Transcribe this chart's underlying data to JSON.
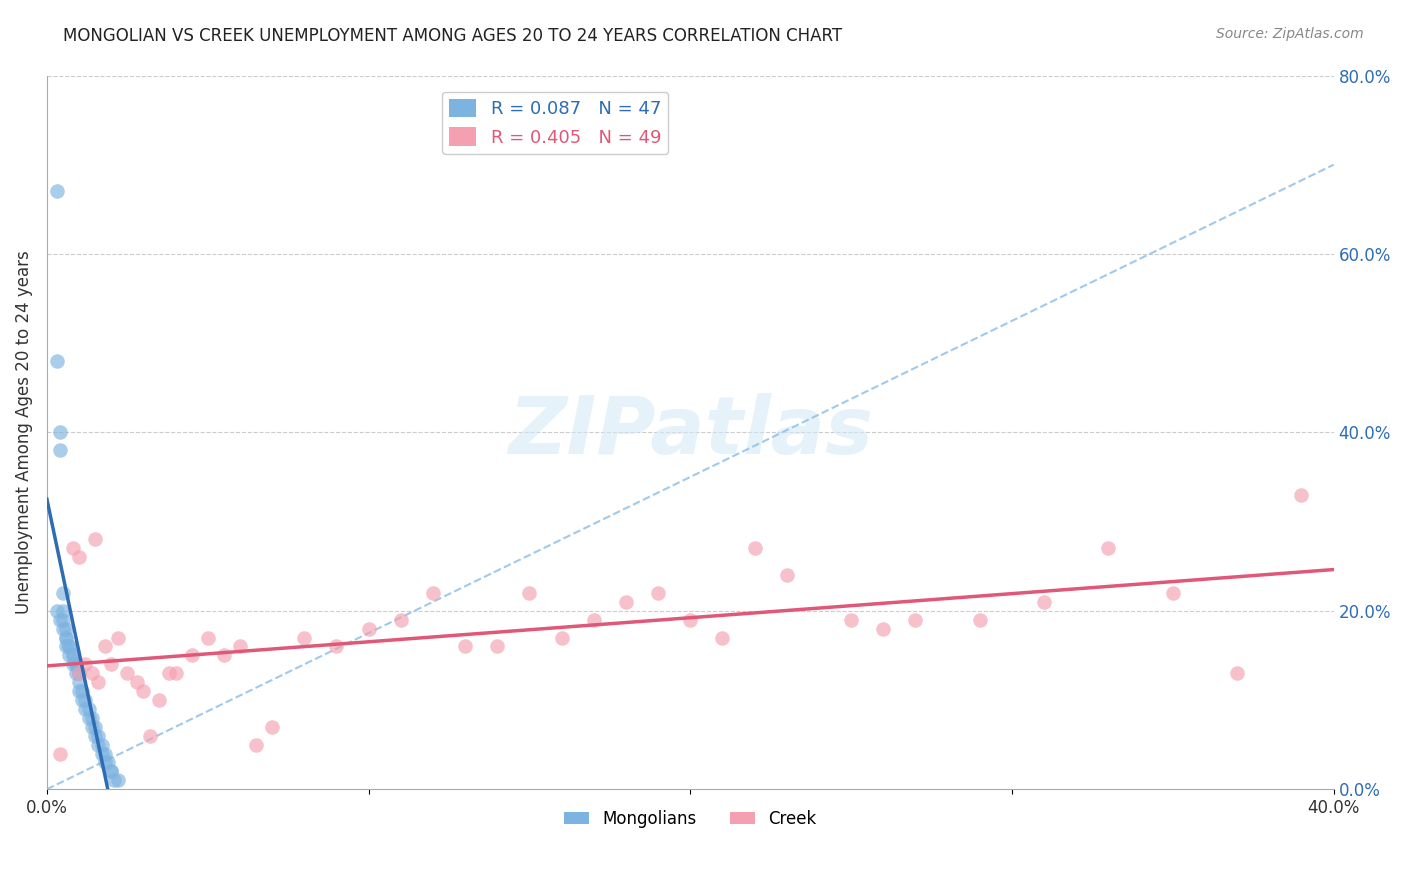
{
  "title": "MONGOLIAN VS CREEK UNEMPLOYMENT AMONG AGES 20 TO 24 YEARS CORRELATION CHART",
  "source": "Source: ZipAtlas.com",
  "ylabel": "Unemployment Among Ages 20 to 24 years",
  "watermark": "ZIPatlas",
  "mongolian_R": 0.087,
  "mongolian_N": 47,
  "creek_R": 0.405,
  "creek_N": 49,
  "xlim": [
    0.0,
    0.4
  ],
  "ylim": [
    0.0,
    0.8
  ],
  "yticks": [
    0.0,
    0.2,
    0.4,
    0.6,
    0.8
  ],
  "ytick_labels": [
    "0.0%",
    "20.0%",
    "40.0%",
    "60.0%",
    "80.0%"
  ],
  "mongolian_color": "#7db3e0",
  "creek_color": "#f4a0b0",
  "mongolian_line_color": "#2e6db4",
  "creek_line_color": "#e05878",
  "dashed_line_color": "#90c0e8",
  "background_color": "#ffffff",
  "dashed_slope": 1.75,
  "mongolian_x": [
    0.003,
    0.003,
    0.004,
    0.004,
    0.005,
    0.005,
    0.005,
    0.006,
    0.006,
    0.006,
    0.007,
    0.007,
    0.008,
    0.008,
    0.009,
    0.009,
    0.01,
    0.01,
    0.01,
    0.011,
    0.011,
    0.012,
    0.012,
    0.013,
    0.013,
    0.014,
    0.014,
    0.015,
    0.015,
    0.016,
    0.016,
    0.017,
    0.017,
    0.018,
    0.018,
    0.019,
    0.02,
    0.02,
    0.021,
    0.022,
    0.003,
    0.004,
    0.005,
    0.006,
    0.007,
    0.008,
    0.009
  ],
  "mongolian_y": [
    0.67,
    0.48,
    0.4,
    0.38,
    0.22,
    0.2,
    0.19,
    0.18,
    0.17,
    0.16,
    0.16,
    0.15,
    0.15,
    0.14,
    0.14,
    0.13,
    0.13,
    0.12,
    0.11,
    0.11,
    0.1,
    0.1,
    0.09,
    0.09,
    0.08,
    0.08,
    0.07,
    0.07,
    0.06,
    0.06,
    0.05,
    0.05,
    0.04,
    0.04,
    0.03,
    0.03,
    0.02,
    0.02,
    0.01,
    0.01,
    0.2,
    0.19,
    0.18,
    0.17,
    0.16,
    0.15,
    0.14
  ],
  "creek_x": [
    0.008,
    0.01,
    0.015,
    0.018,
    0.02,
    0.022,
    0.025,
    0.028,
    0.03,
    0.032,
    0.035,
    0.038,
    0.04,
    0.045,
    0.05,
    0.055,
    0.06,
    0.065,
    0.07,
    0.08,
    0.09,
    0.1,
    0.11,
    0.12,
    0.13,
    0.14,
    0.15,
    0.16,
    0.17,
    0.18,
    0.19,
    0.2,
    0.21,
    0.22,
    0.23,
    0.25,
    0.26,
    0.27,
    0.29,
    0.31,
    0.33,
    0.35,
    0.37,
    0.39,
    0.01,
    0.012,
    0.014,
    0.016,
    0.004
  ],
  "creek_y": [
    0.27,
    0.26,
    0.28,
    0.16,
    0.14,
    0.17,
    0.13,
    0.12,
    0.11,
    0.06,
    0.1,
    0.13,
    0.13,
    0.15,
    0.17,
    0.15,
    0.16,
    0.05,
    0.07,
    0.17,
    0.16,
    0.18,
    0.19,
    0.22,
    0.16,
    0.16,
    0.22,
    0.17,
    0.19,
    0.21,
    0.22,
    0.19,
    0.17,
    0.27,
    0.24,
    0.19,
    0.18,
    0.19,
    0.19,
    0.21,
    0.27,
    0.22,
    0.13,
    0.33,
    0.13,
    0.14,
    0.13,
    0.12,
    0.04
  ]
}
